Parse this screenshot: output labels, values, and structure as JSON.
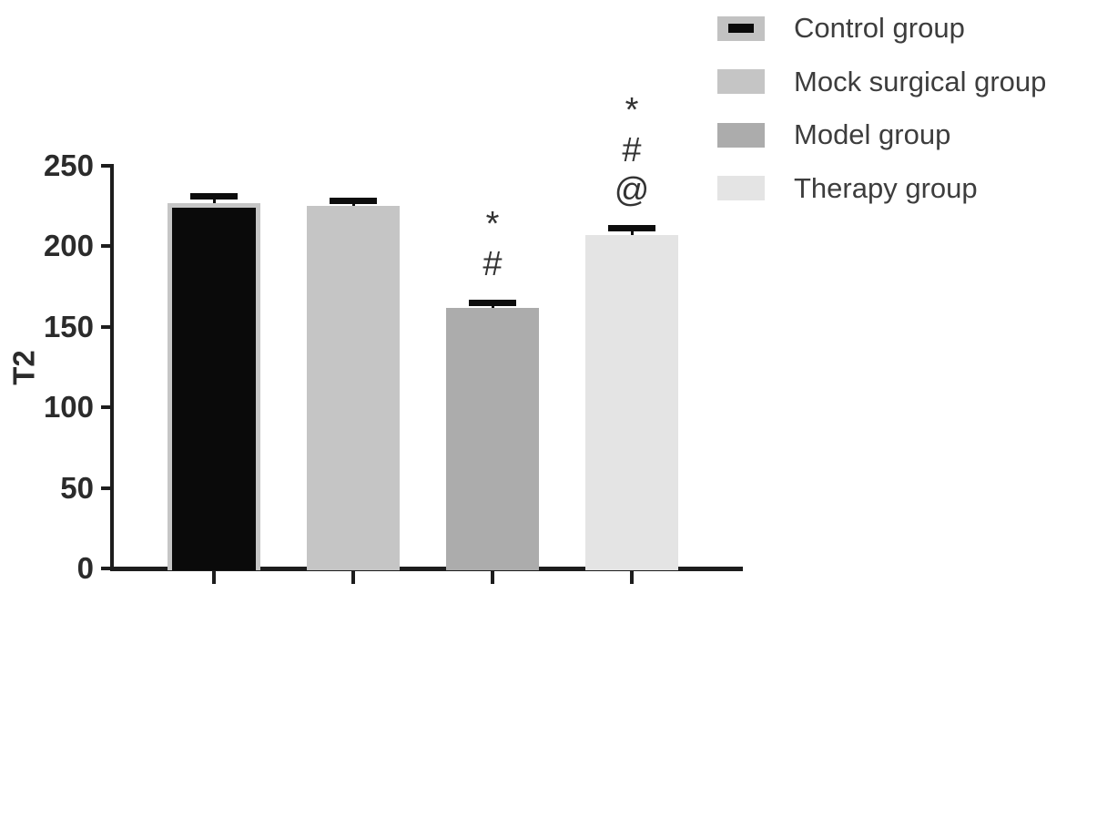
{
  "figure": {
    "background": "#ffffff"
  },
  "chart_data": {
    "type": "bar",
    "title": "",
    "ylabel": "T2",
    "xlabel": "",
    "ylim": [
      0,
      250
    ],
    "yticks": [
      0,
      50,
      100,
      150,
      200,
      250
    ],
    "grid": false,
    "legend_position": "top-right",
    "categories": [
      "Control group",
      "Mock surgical group",
      "Model group",
      "Therapy group"
    ],
    "values": [
      227,
      225,
      162,
      207
    ],
    "errors_plus": [
      4,
      3,
      3,
      4
    ],
    "significance_markers": [
      [],
      [],
      [
        "*",
        "#"
      ],
      [
        "*",
        "#",
        "@"
      ]
    ],
    "bar_fill_colors": [
      "#0a0a0a",
      "#c5c5c5",
      "#acacac",
      "#e4e4e4"
    ],
    "bar_border_colors": [
      "#c6c6c6",
      null,
      null,
      null
    ],
    "error_bar_color": "#0d0d0d",
    "axis_color": "#1d1d1d",
    "tick_label_color": "#2b2b2b",
    "legend_text_color": "#3d3d3d",
    "legend": [
      {
        "label": "Control group",
        "swatch_fill": "#c2c2c2",
        "swatch_inner_bar": "#0a0a0a"
      },
      {
        "label": "Mock surgical group",
        "swatch_fill": "#c5c5c5"
      },
      {
        "label": "Model group",
        "swatch_fill": "#acacac"
      },
      {
        "label": "Therapy group",
        "swatch_fill": "#e4e4e4"
      }
    ]
  }
}
